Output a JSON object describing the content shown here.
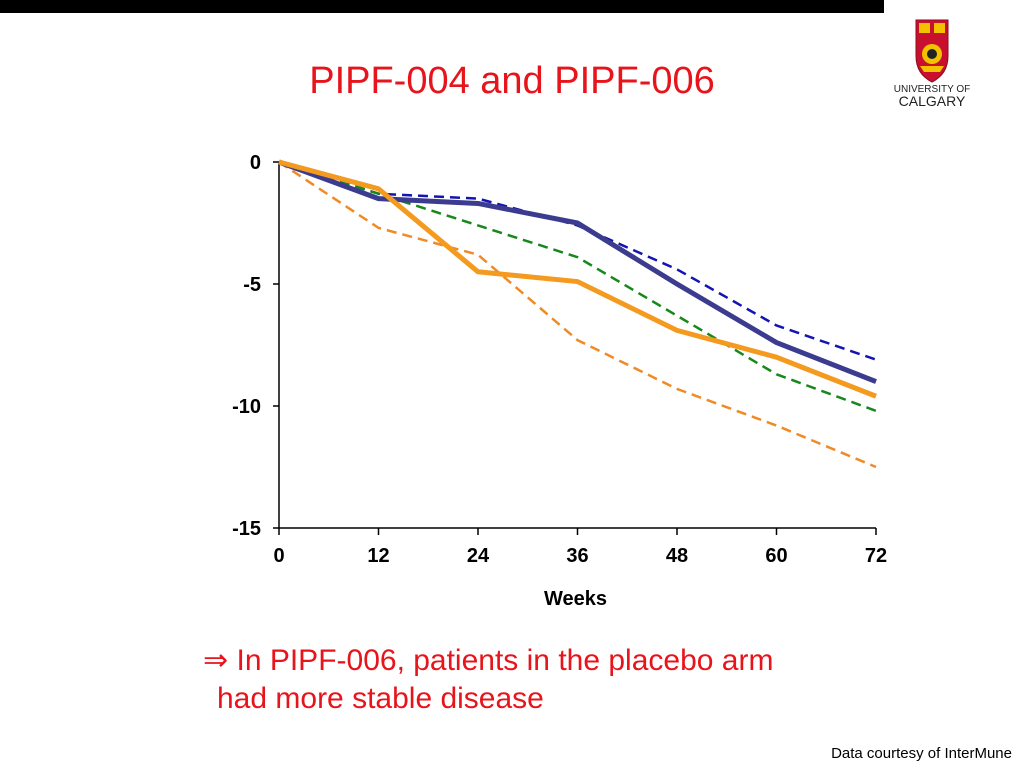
{
  "slide": {
    "title": "PIPF-004 and PIPF-006",
    "callout_arrow": "⇒",
    "callout_line1": "In PIPF-006, patients in the placebo arm",
    "callout_line2": "had more stable disease",
    "credit": "Data courtesy of InterMune",
    "logo_text_line1": "UNIVERSITY OF",
    "logo_text_line2": "CALGARY"
  },
  "colors": {
    "title": "#e8141b",
    "navy_solid": "#3b3b8f",
    "orange_solid": "#f39a1f",
    "blue_dashed": "#1414b4",
    "green_dashed": "#16881c",
    "orange_dashed": "#f08a24"
  },
  "chart_data": {
    "type": "line",
    "title": "",
    "xlabel": "Weeks",
    "ylabel": "",
    "xlim": [
      0,
      72
    ],
    "ylim": [
      -15,
      0
    ],
    "x": [
      0,
      12,
      24,
      36,
      48,
      60,
      72
    ],
    "xticks": [
      "0",
      "12",
      "24",
      "36",
      "48",
      "60",
      "72"
    ],
    "yticks": [
      {
        "value": 0,
        "label": "0"
      },
      {
        "value": -5,
        "label": "-5"
      },
      {
        "value": -10,
        "label": "-10"
      },
      {
        "value": -15,
        "label": "-15"
      }
    ],
    "grid": false,
    "series": [
      {
        "values": [
          0,
          -1.5,
          -1.7,
          -2.5,
          -5.0,
          -7.4,
          -9.0
        ],
        "color": "#3b3b8f",
        "style": "solid"
      },
      {
        "values": [
          0,
          -1.1,
          -4.5,
          -4.9,
          -6.9,
          -8.0,
          -9.6
        ],
        "color": "#f39a1f",
        "style": "solid"
      },
      {
        "values": [
          0,
          -1.3,
          -1.5,
          -2.6,
          -4.4,
          -6.7,
          -8.1
        ],
        "color": "#1414b4",
        "style": "dashed"
      },
      {
        "values": [
          0,
          -1.3,
          -2.6,
          -3.9,
          -6.3,
          -8.7,
          -10.2
        ],
        "color": "#16881c",
        "style": "dashed"
      },
      {
        "values": [
          0,
          -2.7,
          -3.8,
          -7.3,
          -9.3,
          -10.8,
          -12.5
        ],
        "color": "#f08a24",
        "style": "dashed"
      }
    ]
  }
}
